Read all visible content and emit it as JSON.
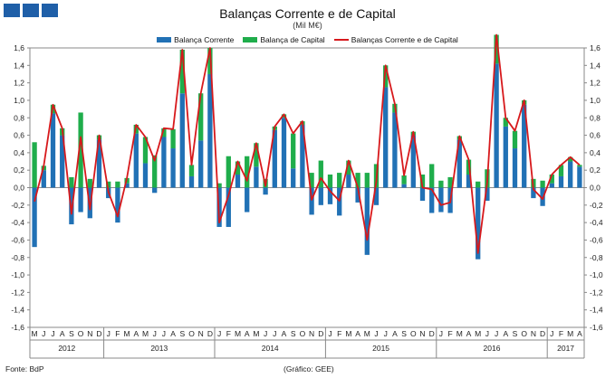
{
  "title": "Balanças Corrente e de Capital",
  "subtitle": "(Mil M€)",
  "footer_left": "Fonte: BdP",
  "footer_center": "(Gráfico: GEE)",
  "logo_icon": "gee-logo-icon",
  "chart_data": {
    "type": "bar",
    "stacked": true,
    "ylim": [
      -1.6,
      1.6
    ],
    "yticks": [
      "1,6",
      "1,4",
      "1,2",
      "1,0",
      "0,8",
      "0,6",
      "0,4",
      "0,2",
      "0,0",
      "-0,2",
      "-0,4",
      "-0,6",
      "-0,8",
      "-1,0",
      "-1,2",
      "-1,4",
      "-1,6"
    ],
    "ytick_values": [
      1.6,
      1.4,
      1.2,
      1.0,
      0.8,
      0.6,
      0.4,
      0.2,
      0.0,
      -0.2,
      -0.4,
      -0.6,
      -0.8,
      -1.0,
      -1.2,
      -1.4,
      -1.6
    ],
    "month_labels": [
      "M",
      "J",
      "J",
      "A",
      "S",
      "O",
      "N",
      "D",
      "J",
      "F",
      "M",
      "A",
      "M",
      "J",
      "J",
      "A",
      "S",
      "O",
      "N",
      "D",
      "J",
      "F",
      "M",
      "A",
      "M",
      "J",
      "J",
      "A",
      "S",
      "O",
      "N",
      "D",
      "J",
      "F",
      "M",
      "A",
      "M",
      "J",
      "J",
      "A",
      "S",
      "O",
      "N",
      "D",
      "J",
      "F",
      "M",
      "A",
      "M",
      "J",
      "J",
      "A",
      "S",
      "O",
      "N",
      "D",
      "J",
      "F",
      "M",
      "A"
    ],
    "years": [
      {
        "label": "2012",
        "start": 0,
        "end": 8
      },
      {
        "label": "2013",
        "start": 8,
        "end": 20
      },
      {
        "label": "2014",
        "start": 20,
        "end": 32
      },
      {
        "label": "2015",
        "start": 32,
        "end": 44
      },
      {
        "label": "2016",
        "start": 44,
        "end": 56
      },
      {
        "label": "2017",
        "start": 56,
        "end": 60
      }
    ],
    "series": [
      {
        "name": "Balança Corrente",
        "color": "#2171b5",
        "values": [
          -0.68,
          0.2,
          0.85,
          0.6,
          -0.42,
          -0.28,
          -0.35,
          0.55,
          -0.12,
          -0.4,
          0.05,
          0.62,
          0.28,
          -0.06,
          0.58,
          0.45,
          1.08,
          0.13,
          0.54,
          1.3,
          -0.45,
          -0.45,
          0.15,
          -0.28,
          0.24,
          -0.08,
          0.66,
          0.8,
          0.22,
          0.72,
          -0.31,
          -0.2,
          -0.19,
          -0.32,
          0.15,
          -0.17,
          -0.77,
          -0.2,
          1.15,
          0.86,
          0.04,
          0.6,
          -0.15,
          -0.29,
          -0.28,
          -0.29,
          0.55,
          0.15,
          -0.82,
          -0.15,
          1.42,
          0.7,
          0.45,
          0.95,
          -0.12,
          -0.21,
          0.05,
          0.13,
          0.3,
          0.24
        ]
      },
      {
        "name": "Balança de Capital",
        "color": "#1fad4b",
        "values": [
          0.52,
          0.05,
          0.1,
          0.08,
          0.12,
          0.86,
          0.1,
          0.05,
          0.07,
          0.07,
          0.06,
          0.1,
          0.3,
          0.37,
          0.1,
          0.22,
          0.5,
          0.13,
          0.54,
          0.3,
          0.05,
          0.36,
          0.15,
          0.36,
          0.27,
          0.1,
          0.04,
          0.04,
          0.4,
          0.04,
          0.17,
          0.31,
          0.15,
          0.17,
          0.16,
          0.17,
          0.17,
          0.27,
          0.25,
          0.1,
          0.1,
          0.04,
          0.15,
          0.27,
          0.08,
          0.12,
          0.04,
          0.17,
          0.07,
          0.21,
          0.33,
          0.1,
          0.2,
          0.05,
          0.1,
          0.08,
          0.1,
          0.13,
          0.05,
          0.02
        ]
      },
      {
        "name": "Balanças Corrente e de Capital",
        "color": "#d7191c",
        "type": "line",
        "values": [
          -0.16,
          0.25,
          0.95,
          0.68,
          -0.3,
          0.58,
          -0.25,
          0.6,
          -0.05,
          -0.33,
          0.11,
          0.72,
          0.58,
          0.31,
          0.68,
          0.67,
          1.58,
          0.26,
          1.08,
          1.6,
          -0.4,
          -0.09,
          0.3,
          0.08,
          0.51,
          0.02,
          0.7,
          0.84,
          0.62,
          0.76,
          -0.14,
          0.11,
          -0.04,
          -0.15,
          0.31,
          0.0,
          -0.6,
          0.07,
          1.4,
          0.96,
          0.14,
          0.64,
          0.0,
          -0.02,
          -0.2,
          -0.17,
          0.59,
          0.32,
          -0.75,
          0.06,
          1.75,
          0.8,
          0.65,
          1.0,
          -0.02,
          -0.13,
          0.15,
          0.26,
          0.35,
          0.26
        ]
      }
    ]
  }
}
